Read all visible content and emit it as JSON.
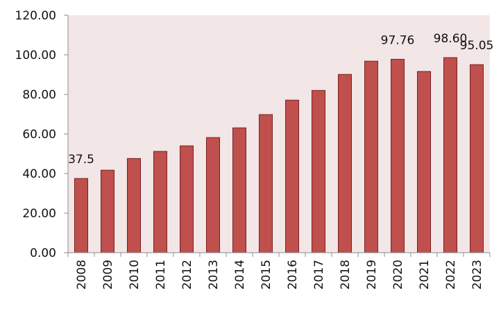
{
  "colors": {
    "plot_background": "#f2e6e6",
    "bar_fill": "#c0504d",
    "bar_stroke": "#7a1f1f",
    "axis": "#8c8c8c",
    "text": "#111111"
  },
  "chart_data": {
    "type": "bar",
    "title": "",
    "xlabel": "",
    "ylabel": "",
    "ylim": [
      0,
      120
    ],
    "y_ticks": [
      "0.00",
      "20.00",
      "40.00",
      "60.00",
      "80.00",
      "100.00",
      "120.00"
    ],
    "grid": false,
    "legend": "none",
    "categories": [
      "2008",
      "2009",
      "2010",
      "2011",
      "2012",
      "2013",
      "2014",
      "2015",
      "2016",
      "2017",
      "2018",
      "2019",
      "2020",
      "2021",
      "2022",
      "2023"
    ],
    "series": [
      {
        "values": [
          37.5,
          41.7,
          47.6,
          51.2,
          54.0,
          58.2,
          63.1,
          69.8,
          77.1,
          82.0,
          90.1,
          96.8,
          97.76,
          91.6,
          98.6,
          95.05
        ]
      }
    ],
    "data_labels": [
      {
        "category": "2008",
        "text": "37.5"
      },
      {
        "category": "2020",
        "text": "97.76"
      },
      {
        "category": "2022",
        "text": "98.60"
      },
      {
        "category": "2023",
        "text": "95.05"
      }
    ]
  }
}
